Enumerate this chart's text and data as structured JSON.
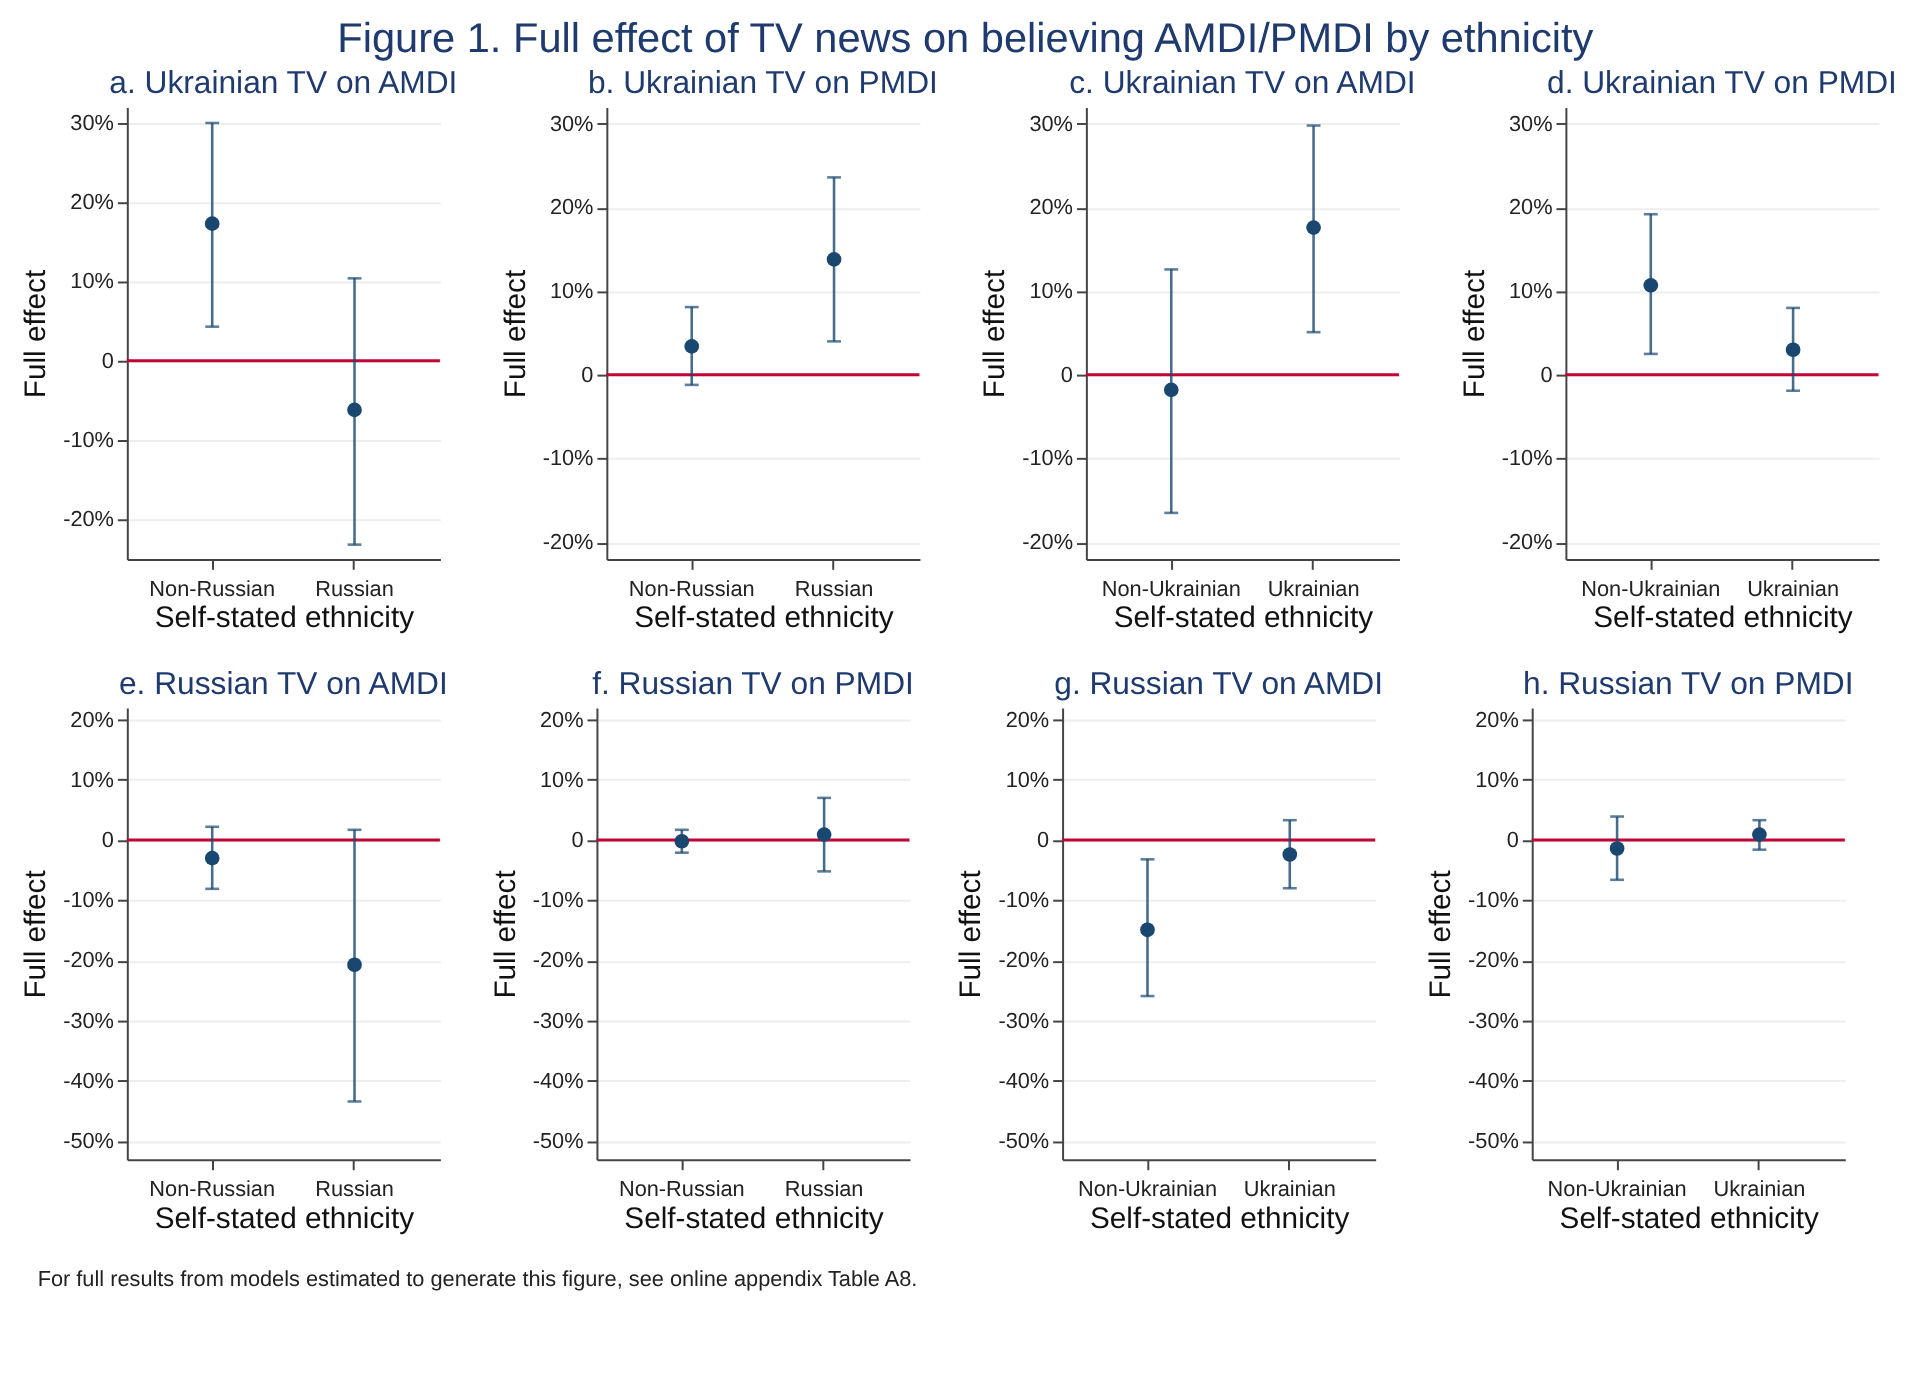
{
  "chart_data": [
    {
      "type": "scatter",
      "title": "a. Ukrainian TV on AMDI",
      "xlabel": "Self-stated ethnicity",
      "ylabel": "Full effect",
      "annotations": [
        "Figure 1. Full effect of TV news on believing AMDI/PMDI by ethnicity"
      ],
      "categories": [
        "Non-Russian",
        "Russian"
      ],
      "values": [
        17.3,
        -6.2
      ],
      "errors": [
        [
          4.3,
          30
        ],
        [
          -23.2,
          10.4
        ]
      ],
      "color": "#1a476f",
      "marker": "circle",
      "grid": "y",
      "ylim": [
        -25,
        32
      ],
      "yticks": [
        {
          "value": -20,
          "label": "-20%"
        },
        {
          "value": -10,
          "label": "-10%"
        },
        0,
        {
          "value": 10,
          "label": "10%"
        },
        {
          "value": 20,
          "label": "20%"
        },
        {
          "value": 30,
          "label": "30%"
        }
      ],
      "ref_lines": [
        {
          "axis": "y",
          "value": 0,
          "color": "#c10534"
        }
      ]
    },
    {
      "type": "scatter",
      "title": "b. Ukrainian TV on PMDI",
      "xlabel": "Self-stated ethnicity",
      "ylabel": "Full effect",
      "categories": [
        "Non-Russian",
        "Russian"
      ],
      "values": [
        3.4,
        13.8
      ],
      "errors": [
        [
          -1.2,
          8.1
        ],
        [
          4.0,
          23.6
        ]
      ],
      "color": "#1a476f",
      "marker": "circle",
      "grid": "y",
      "ylim": [
        -22,
        32
      ],
      "yticks": [
        {
          "value": -20,
          "label": "-20%"
        },
        {
          "value": -10,
          "label": "-10%"
        },
        0,
        {
          "value": 10,
          "label": "10%"
        },
        {
          "value": 20,
          "label": "20%"
        },
        {
          "value": 30,
          "label": "30%"
        }
      ],
      "ref_lines": [
        {
          "axis": "y",
          "value": 0,
          "color": "#c10534"
        }
      ]
    },
    {
      "type": "scatter",
      "title": "c. Ukrainian TV on AMDI",
      "xlabel": "Self-stated ethnicity",
      "ylabel": "Full effect",
      "categories": [
        "Non-Ukrainian",
        "Ukrainian"
      ],
      "values": [
        -1.8,
        17.6
      ],
      "errors": [
        [
          -16.5,
          12.6
        ],
        [
          5.1,
          29.8
        ]
      ],
      "color": "#1a476f",
      "marker": "circle",
      "grid": "y",
      "ylim": [
        -22,
        32
      ],
      "yticks": [
        {
          "value": -20,
          "label": "-20%"
        },
        {
          "value": -10,
          "label": "-10%"
        },
        0,
        {
          "value": 10,
          "label": "10%"
        },
        {
          "value": 20,
          "label": "20%"
        },
        {
          "value": 30,
          "label": "30%"
        }
      ],
      "ref_lines": [
        {
          "axis": "y",
          "value": 0,
          "color": "#c10534"
        }
      ]
    },
    {
      "type": "scatter",
      "title": "d. Ukrainian TV on PMDI",
      "xlabel": "Self-stated ethnicity",
      "ylabel": "Full effect",
      "categories": [
        "Non-Ukrainian",
        "Ukrainian"
      ],
      "values": [
        10.7,
        3.0
      ],
      "errors": [
        [
          2.5,
          19.2
        ],
        [
          -1.9,
          8.0
        ]
      ],
      "color": "#1a476f",
      "marker": "circle",
      "grid": "y",
      "ylim": [
        -22,
        32
      ],
      "yticks": [
        {
          "value": -20,
          "label": "-20%"
        },
        {
          "value": -10,
          "label": "-10%"
        },
        0,
        {
          "value": 10,
          "label": "10%"
        },
        {
          "value": 20,
          "label": "20%"
        },
        {
          "value": 30,
          "label": "30%"
        }
      ],
      "ref_lines": [
        {
          "axis": "y",
          "value": 0,
          "color": "#c10534"
        }
      ]
    },
    {
      "type": "scatter",
      "title": "e. Russian TV on AMDI",
      "xlabel": "Self-stated ethnicity",
      "ylabel": "Full effect",
      "categories": [
        "Non-Russian",
        "Russian"
      ],
      "values": [
        -3.0,
        -20.7
      ],
      "errors": [
        [
          -8.1,
          2.2
        ],
        [
          -43.4,
          1.7
        ]
      ],
      "color": "#1a476f",
      "marker": "circle",
      "grid": "y",
      "ylim": [
        -53,
        22
      ],
      "yticks": [
        {
          "value": -50,
          "label": "-50%"
        },
        {
          "value": -40,
          "label": "-40%"
        },
        {
          "value": -30,
          "label": "-30%"
        },
        {
          "value": -20,
          "label": "-20%"
        },
        {
          "value": -10,
          "label": "-10%"
        },
        0,
        {
          "value": 10,
          "label": "10%"
        },
        {
          "value": 20,
          "label": "20%"
        }
      ],
      "ref_lines": [
        {
          "axis": "y",
          "value": 0,
          "color": "#c10534"
        }
      ]
    },
    {
      "type": "scatter",
      "title": "f. Russian TV on PMDI",
      "xlabel": "Self-stated ethnicity",
      "ylabel": "Full effect",
      "categories": [
        "Non-Russian",
        "Russian"
      ],
      "values": [
        -0.2,
        0.9
      ],
      "errors": [
        [
          -2.1,
          1.7
        ],
        [
          -5.2,
          7.0
        ]
      ],
      "color": "#1a476f",
      "marker": "circle",
      "grid": "y",
      "ylim": [
        -53,
        22
      ],
      "yticks": [
        {
          "value": -50,
          "label": "-50%"
        },
        {
          "value": -40,
          "label": "-40%"
        },
        {
          "value": -30,
          "label": "-30%"
        },
        {
          "value": -20,
          "label": "-20%"
        },
        {
          "value": -10,
          "label": "-10%"
        },
        0,
        {
          "value": 10,
          "label": "10%"
        },
        {
          "value": 20,
          "label": "20%"
        }
      ],
      "ref_lines": [
        {
          "axis": "y",
          "value": 0,
          "color": "#c10534"
        }
      ]
    },
    {
      "type": "scatter",
      "title": "g. Russian TV on AMDI",
      "xlabel": "Self-stated ethnicity",
      "ylabel": "Full effect",
      "categories": [
        "Non-Ukrainian",
        "Ukrainian"
      ],
      "values": [
        -14.9,
        -2.4
      ],
      "errors": [
        [
          -25.9,
          -3.2
        ],
        [
          -8.0,
          3.3
        ]
      ],
      "color": "#1a476f",
      "marker": "circle",
      "grid": "y",
      "ylim": [
        -53,
        22
      ],
      "yticks": [
        {
          "value": -50,
          "label": "-50%"
        },
        {
          "value": -40,
          "label": "-40%"
        },
        {
          "value": -30,
          "label": "-30%"
        },
        {
          "value": -20,
          "label": "-20%"
        },
        {
          "value": -10,
          "label": "-10%"
        },
        0,
        {
          "value": 10,
          "label": "10%"
        },
        {
          "value": 20,
          "label": "20%"
        }
      ],
      "ref_lines": [
        {
          "axis": "y",
          "value": 0,
          "color": "#c10534"
        }
      ]
    },
    {
      "type": "scatter",
      "title": "h. Russian TV on PMDI",
      "xlabel": "Self-stated ethnicity",
      "ylabel": "Full effect",
      "annotations": [
        "For full results from models estimated to generate this figure, see online appendix Table A8."
      ],
      "categories": [
        "Non-Ukrainian",
        "Ukrainian"
      ],
      "values": [
        -1.4,
        0.9
      ],
      "errors": [
        [
          -6.6,
          3.9
        ],
        [
          -1.6,
          3.3
        ]
      ],
      "color": "#1a476f",
      "marker": "circle",
      "grid": "y",
      "ylim": [
        -53,
        22
      ],
      "yticks": [
        {
          "value": -50,
          "label": "-50%"
        },
        {
          "value": -40,
          "label": "-40%"
        },
        {
          "value": -30,
          "label": "-30%"
        },
        {
          "value": -20,
          "label": "-20%"
        },
        {
          "value": -10,
          "label": "-10%"
        },
        0,
        {
          "value": 10,
          "label": "10%"
        },
        {
          "value": 20,
          "label": "20%"
        }
      ],
      "ref_lines": [
        {
          "axis": "y",
          "value": 0,
          "color": "#c10534"
        }
      ]
    }
  ]
}
